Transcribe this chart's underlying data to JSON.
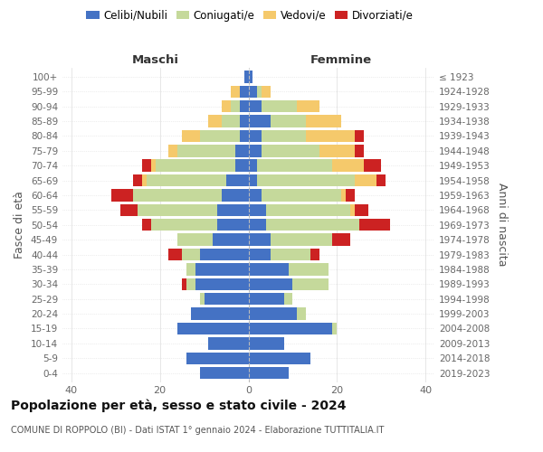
{
  "age_groups": [
    "100+",
    "95-99",
    "90-94",
    "85-89",
    "80-84",
    "75-79",
    "70-74",
    "65-69",
    "60-64",
    "55-59",
    "50-54",
    "45-49",
    "40-44",
    "35-39",
    "30-34",
    "25-29",
    "20-24",
    "15-19",
    "10-14",
    "5-9",
    "0-4"
  ],
  "birth_years": [
    "≤ 1923",
    "1924-1928",
    "1929-1933",
    "1934-1938",
    "1939-1943",
    "1944-1948",
    "1949-1953",
    "1954-1958",
    "1959-1963",
    "1964-1968",
    "1969-1973",
    "1974-1978",
    "1979-1983",
    "1984-1988",
    "1989-1993",
    "1994-1998",
    "1999-2003",
    "2004-2008",
    "2009-2013",
    "2014-2018",
    "2019-2023"
  ],
  "male": {
    "celibi": [
      1,
      2,
      2,
      2,
      2,
      3,
      3,
      5,
      6,
      7,
      7,
      8,
      11,
      12,
      12,
      10,
      13,
      16,
      9,
      14,
      11
    ],
    "coniugati": [
      0,
      0,
      2,
      4,
      9,
      13,
      18,
      18,
      20,
      18,
      15,
      8,
      4,
      2,
      2,
      1,
      0,
      0,
      0,
      0,
      0
    ],
    "vedovi": [
      0,
      2,
      2,
      3,
      4,
      2,
      1,
      1,
      0,
      0,
      0,
      0,
      0,
      0,
      0,
      0,
      0,
      0,
      0,
      0,
      0
    ],
    "divorziati": [
      0,
      0,
      0,
      0,
      0,
      0,
      2,
      2,
      5,
      4,
      2,
      0,
      3,
      0,
      1,
      0,
      0,
      0,
      0,
      0,
      0
    ]
  },
  "female": {
    "nubili": [
      1,
      2,
      3,
      5,
      3,
      3,
      2,
      2,
      3,
      4,
      4,
      5,
      5,
      9,
      10,
      8,
      11,
      19,
      8,
      14,
      9
    ],
    "coniugate": [
      0,
      1,
      8,
      8,
      10,
      13,
      17,
      22,
      18,
      19,
      21,
      14,
      9,
      9,
      8,
      2,
      2,
      1,
      0,
      0,
      0
    ],
    "vedove": [
      0,
      2,
      5,
      8,
      11,
      8,
      7,
      5,
      1,
      1,
      0,
      0,
      0,
      0,
      0,
      0,
      0,
      0,
      0,
      0,
      0
    ],
    "divorziate": [
      0,
      0,
      0,
      0,
      2,
      2,
      4,
      2,
      2,
      3,
      7,
      4,
      2,
      0,
      0,
      0,
      0,
      0,
      0,
      0,
      0
    ]
  },
  "colors": {
    "celibi": "#4472C4",
    "coniugati": "#c5d99b",
    "vedovi": "#f5c96b",
    "divorziati": "#cc2222"
  },
  "title": "Popolazione per età, sesso e stato civile - 2024",
  "subtitle": "COMUNE DI ROPPOLO (BI) - Dati ISTAT 1° gennaio 2024 - Elaborazione TUTTITALIA.IT",
  "label_maschi": "Maschi",
  "label_femmine": "Femmine",
  "ylabel": "Fasce di età",
  "ylabel_right": "Anni di nascita",
  "xlim": 42,
  "legend_labels": [
    "Celibi/Nubili",
    "Coniugati/e",
    "Vedovi/e",
    "Divorziati/e"
  ]
}
